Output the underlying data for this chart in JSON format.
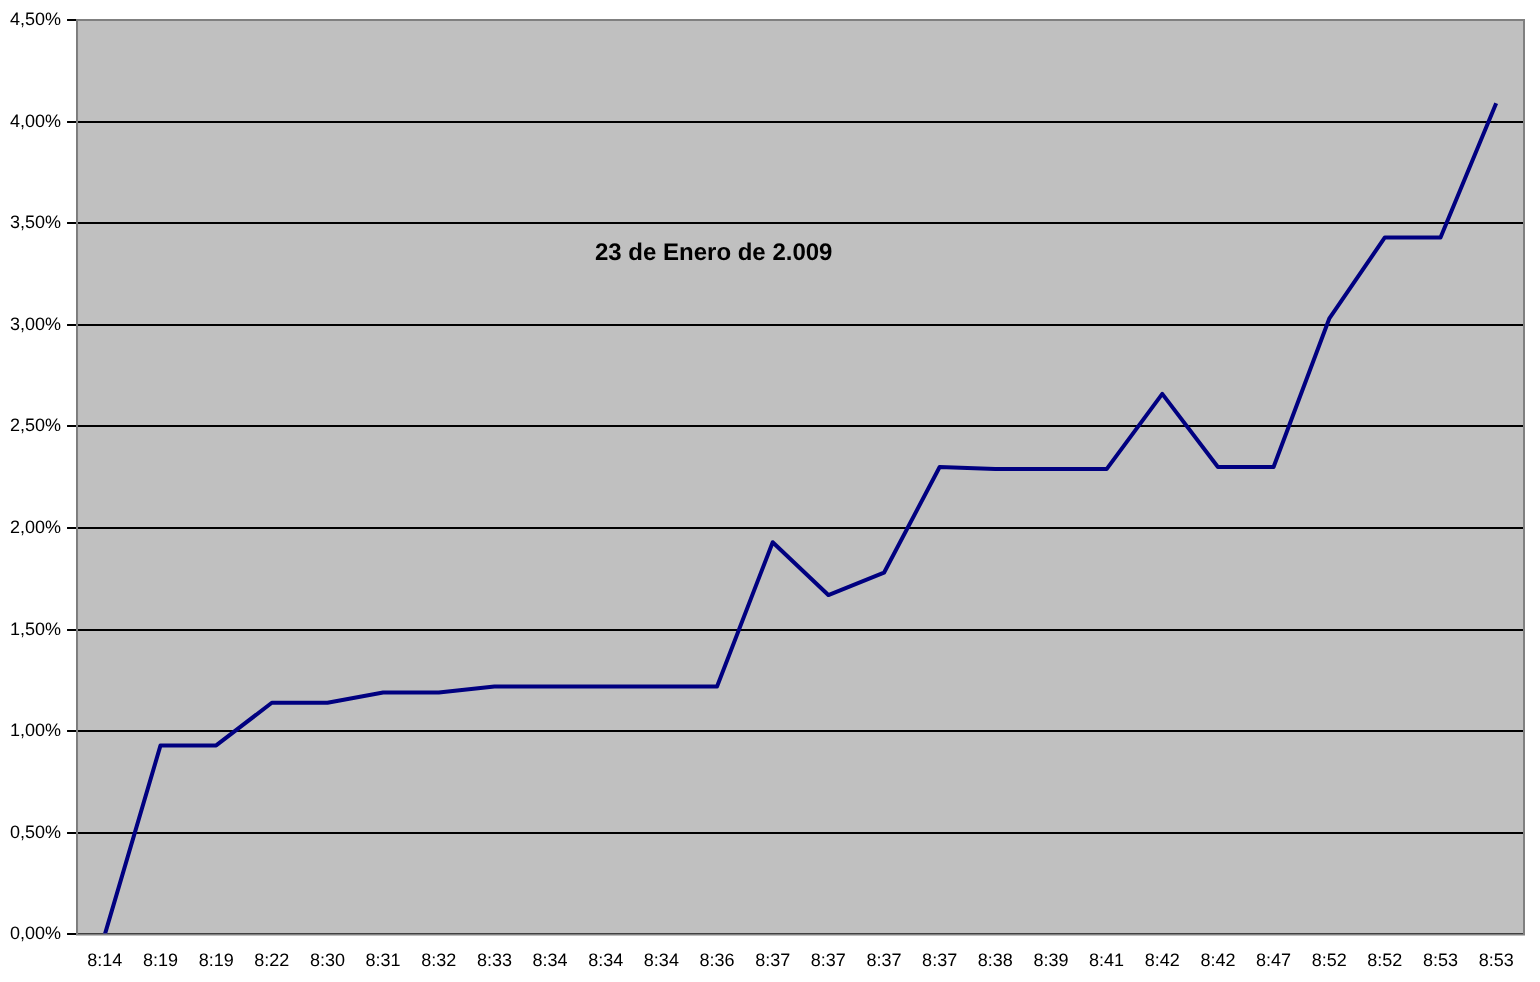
{
  "chart_data": {
    "type": "line",
    "categories": [
      "8:14",
      "8:19",
      "8:19",
      "8:22",
      "8:30",
      "8:31",
      "8:32",
      "8:33",
      "8:34",
      "8:34",
      "8:34",
      "8:36",
      "8:37",
      "8:37",
      "8:37",
      "8:37",
      "8:38",
      "8:39",
      "8:41",
      "8:42",
      "8:42",
      "8:47",
      "8:52",
      "8:52",
      "8:53",
      "8:53"
    ],
    "series": [
      {
        "color": "#000080",
        "values": [
          0,
          0.93,
          0.93,
          1.14,
          1.14,
          1.19,
          1.19,
          1.22,
          1.22,
          1.22,
          1.22,
          1.22,
          1.93,
          1.67,
          1.78,
          2.3,
          2.29,
          2.29,
          2.29,
          2.66,
          2.3,
          2.3,
          3.03,
          3.43,
          3.43,
          4.09
        ]
      }
    ],
    "ylim": [
      0,
      4.5
    ],
    "yticks": [
      {
        "value": 0,
        "label": "0,00%"
      },
      {
        "value": 0.5,
        "label": "0,50%"
      },
      {
        "value": 1,
        "label": "1,00%"
      },
      {
        "value": 1.5,
        "label": "1,50%"
      },
      {
        "value": 2,
        "label": "2,00%"
      },
      {
        "value": 2.5,
        "label": "2,50%"
      },
      {
        "value": 3,
        "label": "3,00%"
      },
      {
        "value": 3.5,
        "label": "3,50%"
      },
      {
        "value": 4,
        "label": "4,00%"
      },
      {
        "value": 4.5,
        "label": "4,50%"
      }
    ],
    "grid": "y",
    "marker": "none",
    "line_style": "solid",
    "legend": false,
    "annotations": [
      "23 de Enero de 2.009"
    ]
  }
}
